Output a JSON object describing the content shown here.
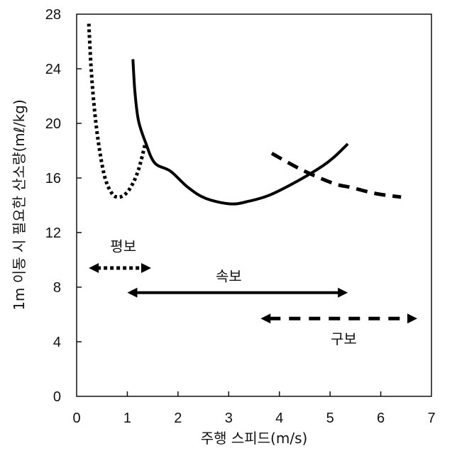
{
  "chart_data": {
    "type": "line",
    "title": "",
    "xlabel": "주행 스피드(m/s)",
    "ylabel": "1m 이동 시 필요한 산소량(mℓ/kg)",
    "xlim": [
      0,
      7
    ],
    "ylim": [
      0,
      28
    ],
    "xticks": [
      0,
      1,
      2,
      3,
      4,
      5,
      6,
      7
    ],
    "yticks": [
      0,
      4,
      8,
      12,
      16,
      20,
      24,
      28
    ],
    "grid": false,
    "series": [
      {
        "name": "평보",
        "style": "dotted",
        "color": "#000000",
        "points": [
          [
            0.24,
            27.3
          ],
          [
            0.29,
            23.8
          ],
          [
            0.36,
            20.7
          ],
          [
            0.45,
            18.1
          ],
          [
            0.56,
            16.0
          ],
          [
            0.69,
            14.9
          ],
          [
            0.8,
            14.6
          ],
          [
            0.94,
            14.75
          ],
          [
            1.08,
            15.4
          ],
          [
            1.22,
            16.6
          ],
          [
            1.36,
            18.6
          ]
        ]
      },
      {
        "name": "속보",
        "style": "solid",
        "color": "#000000",
        "points": [
          [
            1.11,
            24.7
          ],
          [
            1.15,
            22.3
          ],
          [
            1.22,
            20.2
          ],
          [
            1.36,
            18.6
          ],
          [
            1.54,
            17.1
          ],
          [
            1.85,
            16.5
          ],
          [
            2.2,
            15.3
          ],
          [
            2.55,
            14.5
          ],
          [
            3.04,
            14.1
          ],
          [
            3.4,
            14.3
          ],
          [
            3.81,
            14.75
          ],
          [
            4.37,
            15.8
          ],
          [
            4.86,
            16.9
          ],
          [
            5.1,
            17.6
          ],
          [
            5.35,
            18.5
          ]
        ]
      },
      {
        "name": "구보",
        "style": "dashed",
        "color": "#000000",
        "points": [
          [
            3.85,
            17.8
          ],
          [
            4.44,
            16.6
          ],
          [
            5.07,
            15.6
          ],
          [
            5.42,
            15.3
          ],
          [
            5.91,
            14.85
          ],
          [
            6.4,
            14.6
          ]
        ]
      }
    ],
    "annotations": [
      {
        "label": "평보",
        "style": "dotted",
        "range": [
          0.24,
          1.47
        ],
        "y": 9.4,
        "label_x": 0.92,
        "label_y": 11.0
      },
      {
        "label": "속보",
        "style": "solid",
        "range": [
          1.0,
          5.35
        ],
        "y": 7.6,
        "label_x": 3.0,
        "label_y": 8.8
      },
      {
        "label": "구보",
        "style": "dashed",
        "range": [
          3.63,
          6.72
        ],
        "y": 5.7,
        "label_x": 5.27,
        "label_y": 4.2
      }
    ]
  }
}
